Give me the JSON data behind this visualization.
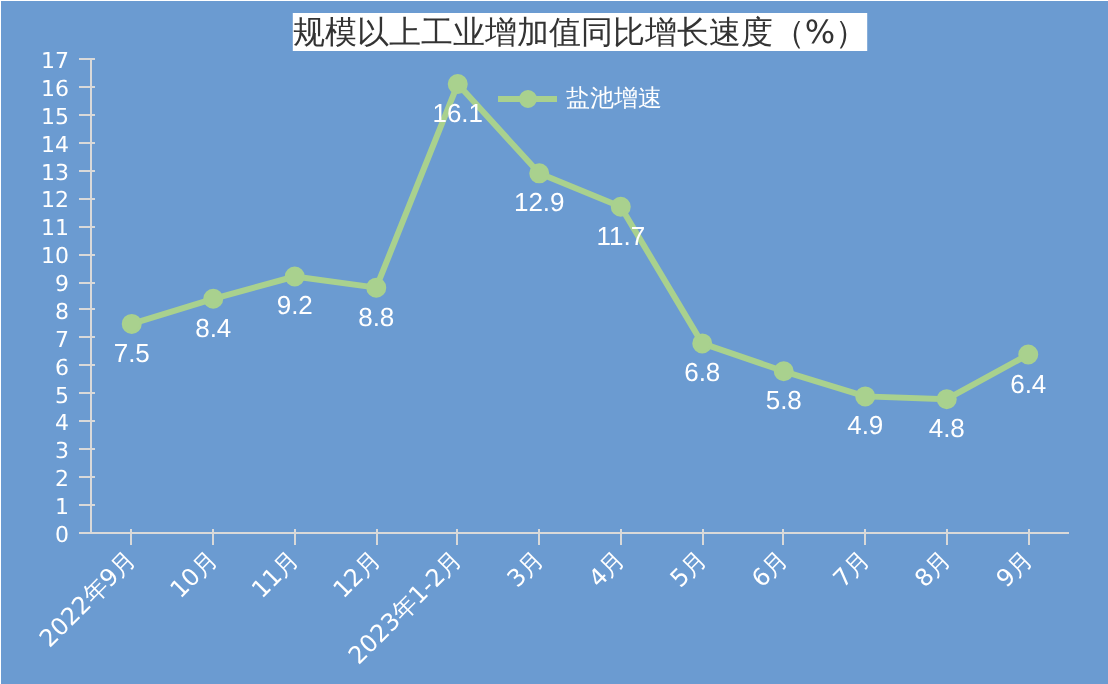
{
  "chart_data": {
    "type": "line",
    "title": "规模以上工业增加值同比增长速度（%）",
    "categories": [
      "2022年9月",
      "10月",
      "11月",
      "12月",
      "2023年1-2月",
      "3月",
      "4月",
      "5月",
      "6月",
      "7月",
      "8月",
      "9月"
    ],
    "series": [
      {
        "name": "盐池增速",
        "color": "#a9d18e",
        "values": [
          7.5,
          8.4,
          9.2,
          8.8,
          16.1,
          12.9,
          11.7,
          6.8,
          5.8,
          4.9,
          4.8,
          6.4
        ]
      }
    ],
    "ylim": [
      0,
      17
    ],
    "yticks": [
      0,
      1,
      2,
      3,
      4,
      5,
      6,
      7,
      8,
      9,
      10,
      11,
      12,
      13,
      14,
      15,
      16,
      17
    ],
    "data_labels": true,
    "legend": "top",
    "marker": "circle",
    "line_style": "solid",
    "grid": false
  }
}
